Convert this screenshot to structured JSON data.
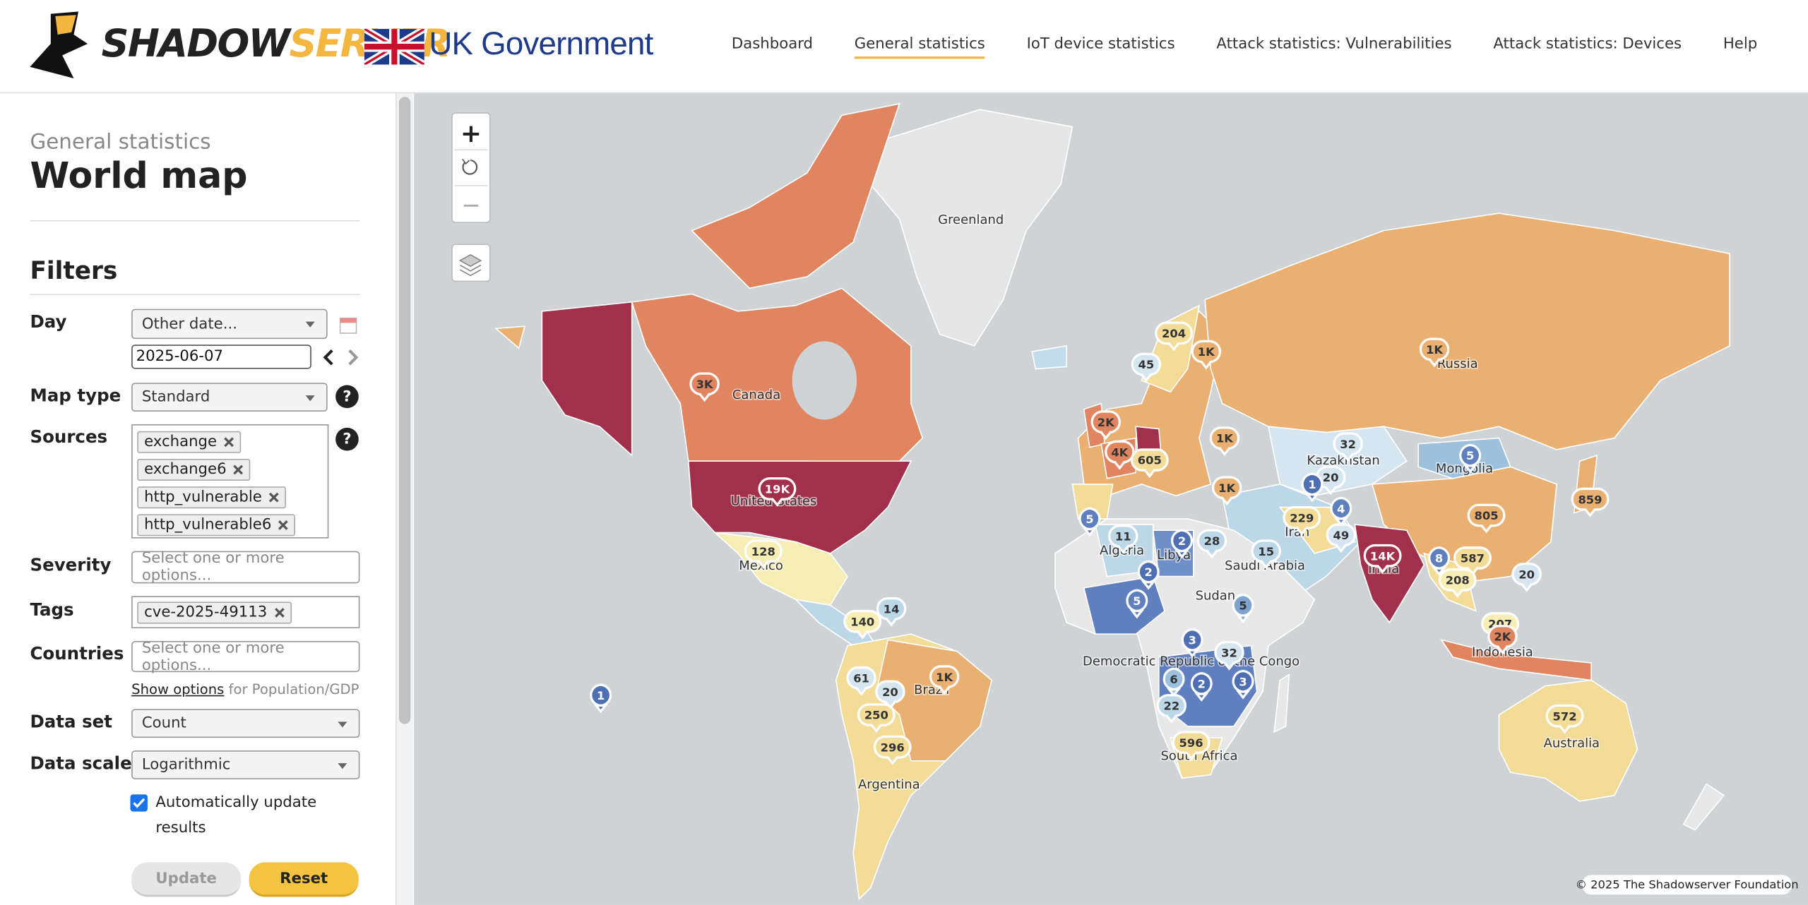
{
  "header": {
    "logo_dark": "SHADOW",
    "logo_accent": "SERVER",
    "partner": "UK Government",
    "nav": [
      "Dashboard",
      "General statistics",
      "IoT device statistics",
      "Attack statistics: Vulnerabilities",
      "Attack statistics: Devices",
      "Help"
    ],
    "nav_active": 1
  },
  "sidebar": {
    "breadcrumb": "General statistics",
    "title": "World map",
    "filters_heading": "Filters",
    "help_icon": "?",
    "day": {
      "label": "Day",
      "select": "Other date...",
      "date": "2025-06-07"
    },
    "map_type": {
      "label": "Map type",
      "select": "Standard"
    },
    "sources": {
      "label": "Sources",
      "tags": [
        "exchange",
        "exchange6",
        "http_vulnerable",
        "http_vulnerable6"
      ]
    },
    "severity": {
      "label": "Severity",
      "placeholder": "Select one or more options..."
    },
    "tags": {
      "label": "Tags",
      "tags": [
        "cve-2025-49113"
      ]
    },
    "countries": {
      "label": "Countries",
      "placeholder": "Select one or more options..."
    },
    "show_options": {
      "link": "Show options",
      "note": "for Population/GDP"
    },
    "data_set": {
      "label": "Data set",
      "select": "Count"
    },
    "data_scale": {
      "label": "Data scale",
      "select": "Logarithmic"
    },
    "auto_update": {
      "label": "Automatically update results",
      "checked": true
    },
    "buttons": {
      "update": "Update",
      "reset": "Reset"
    }
  },
  "map": {
    "zoom_in": "+",
    "zoom_out": "−",
    "country_labels": [
      "Greenland",
      "Canada",
      "United States",
      "Mexico",
      "Brazil",
      "Argentina",
      "Russia",
      "Kazakhstan",
      "Mongolia",
      "India",
      "Iran",
      "Saudi Arabia",
      "Algeria",
      "Libya",
      "Sudan",
      "Democratic Republic of the Congo",
      "South Africa",
      "Indonesia",
      "Australia"
    ],
    "markers": [
      {
        "label": "3K",
        "color": "#e0855f"
      },
      {
        "label": "19K",
        "color": "#a3304a"
      },
      {
        "label": "128",
        "color": "#f7eeb6"
      },
      {
        "label": "1",
        "color": "#4f6fb3"
      },
      {
        "label": "140",
        "color": "#f7eeb6"
      },
      {
        "label": "14",
        "color": "#bcd7e8"
      },
      {
        "label": "61",
        "color": "#d6e6f0"
      },
      {
        "label": "20",
        "color": "#d6e6f0"
      },
      {
        "label": "250",
        "color": "#f2dc98"
      },
      {
        "label": "296",
        "color": "#f2dc98"
      },
      {
        "label": "1K",
        "color": "#eab071"
      },
      {
        "label": "204",
        "color": "#f2dc98"
      },
      {
        "label": "45",
        "color": "#d6e6f0"
      },
      {
        "label": "1K",
        "color": "#eab071"
      },
      {
        "label": "2K",
        "color": "#e0855f"
      },
      {
        "label": "4K",
        "color": "#e0855f"
      },
      {
        "label": "605",
        "color": "#f2dc98"
      },
      {
        "label": "1K",
        "color": "#eab071"
      },
      {
        "label": "1K",
        "color": "#eab071"
      },
      {
        "label": "32",
        "color": "#d6e6f0"
      },
      {
        "label": "20",
        "color": "#d6e6f0"
      },
      {
        "label": "1",
        "color": "#4f6fb3"
      },
      {
        "label": "4",
        "color": "#5f7fbf"
      },
      {
        "label": "49",
        "color": "#d6e6f0"
      },
      {
        "label": "229",
        "color": "#f2dc98"
      },
      {
        "label": "5",
        "color": "#5f7fbf"
      },
      {
        "label": "1K",
        "color": "#eab071"
      },
      {
        "label": "805",
        "color": "#eab071"
      },
      {
        "label": "859",
        "color": "#eab071"
      },
      {
        "label": "14K",
        "color": "#a3304a"
      },
      {
        "label": "8",
        "color": "#5f7fbf"
      },
      {
        "label": "587",
        "color": "#f2dc98"
      },
      {
        "label": "208",
        "color": "#f7eeb6"
      },
      {
        "label": "20",
        "color": "#d6e6f0"
      },
      {
        "label": "207",
        "color": "#f7eeb6"
      },
      {
        "label": "2K",
        "color": "#e0855f"
      },
      {
        "label": "572",
        "color": "#f2dc98"
      },
      {
        "label": "5",
        "color": "#5f7fbf"
      },
      {
        "label": "11",
        "color": "#bcd7e8"
      },
      {
        "label": "2",
        "color": "#4f6fb3"
      },
      {
        "label": "28",
        "color": "#bcd7e8"
      },
      {
        "label": "15",
        "color": "#bcd7e8"
      },
      {
        "label": "2",
        "color": "#4f6fb3"
      },
      {
        "label": "5",
        "color": "#5f7fbf"
      },
      {
        "label": "5",
        "color": "#7fa3cf"
      },
      {
        "label": "3",
        "color": "#4f6fb3"
      },
      {
        "label": "32",
        "color": "#d6e6f0"
      },
      {
        "label": "6",
        "color": "#9dc1dc"
      },
      {
        "label": "2",
        "color": "#4f6fb3"
      },
      {
        "label": "3",
        "color": "#4f6fb3"
      },
      {
        "label": "22",
        "color": "#bcd7e8"
      },
      {
        "label": "596",
        "color": "#f2dc98"
      }
    ],
    "copyright": "© 2025 The Shadowserver Foundation"
  }
}
